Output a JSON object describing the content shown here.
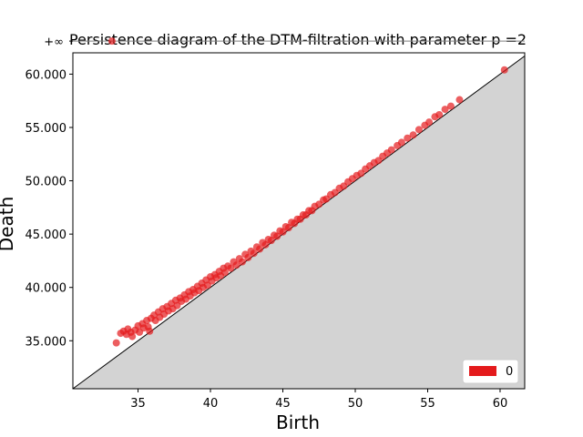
{
  "chart_data": {
    "type": "scatter",
    "title": "Persistence diagram of the DTM-filtration with parameter p =2",
    "xlabel": "Birth",
    "ylabel": "Death",
    "xlim": [
      30.5,
      61.7
    ],
    "ylim": [
      30.5,
      62.0
    ],
    "infinity_label": "+∞",
    "infinity_death_display": 63.1,
    "x_ticks": [
      35,
      40,
      45,
      50,
      55,
      60
    ],
    "x_tick_labels": [
      "35",
      "40",
      "45",
      "50",
      "55",
      "60"
    ],
    "y_ticks": [
      35,
      40,
      45,
      50,
      55,
      60
    ],
    "y_tick_labels": [
      "35.000",
      "40.000",
      "45.000",
      "50.000",
      "55.000",
      "60.000"
    ],
    "grid": false,
    "legend": {
      "position": "bottom-right",
      "entries": [
        {
          "label": "0",
          "color": "#e41a1c"
        }
      ]
    },
    "colors": {
      "points": "#e41a1c",
      "diagonal_fill": "#d3d3d3",
      "infinity_line": "#808080"
    },
    "series": [
      {
        "name": "0",
        "infinite_births": [
          33.2
        ],
        "points": [
          [
            33.5,
            34.8
          ],
          [
            33.8,
            35.7
          ],
          [
            34.0,
            35.9
          ],
          [
            34.2,
            35.6
          ],
          [
            34.3,
            36.1
          ],
          [
            34.5,
            35.8
          ],
          [
            34.6,
            35.4
          ],
          [
            34.8,
            36.0
          ],
          [
            35.0,
            36.4
          ],
          [
            35.1,
            35.8
          ],
          [
            35.3,
            36.6
          ],
          [
            35.4,
            36.2
          ],
          [
            35.6,
            36.9
          ],
          [
            35.7,
            36.3
          ],
          [
            35.8,
            35.9
          ],
          [
            35.9,
            37.1
          ],
          [
            36.1,
            37.4
          ],
          [
            36.2,
            36.9
          ],
          [
            36.4,
            37.7
          ],
          [
            36.5,
            37.2
          ],
          [
            36.7,
            38.0
          ],
          [
            36.8,
            37.5
          ],
          [
            37.0,
            38.2
          ],
          [
            37.1,
            37.8
          ],
          [
            37.3,
            38.5
          ],
          [
            37.4,
            38.0
          ],
          [
            37.6,
            38.8
          ],
          [
            37.7,
            38.3
          ],
          [
            37.9,
            39.0
          ],
          [
            38.0,
            38.7
          ],
          [
            38.2,
            39.3
          ],
          [
            38.3,
            38.9
          ],
          [
            38.5,
            39.6
          ],
          [
            38.6,
            39.2
          ],
          [
            38.8,
            39.8
          ],
          [
            38.9,
            39.5
          ],
          [
            39.1,
            40.1
          ],
          [
            39.2,
            39.7
          ],
          [
            39.4,
            40.4
          ],
          [
            39.5,
            40.0
          ],
          [
            39.7,
            40.7
          ],
          [
            39.8,
            40.2
          ],
          [
            40.0,
            41.0
          ],
          [
            40.1,
            40.6
          ],
          [
            40.3,
            41.2
          ],
          [
            40.4,
            40.9
          ],
          [
            40.6,
            41.5
          ],
          [
            40.7,
            41.1
          ],
          [
            40.9,
            41.8
          ],
          [
            41.0,
            41.4
          ],
          [
            41.2,
            42.0
          ],
          [
            41.4,
            41.8
          ],
          [
            41.6,
            42.4
          ],
          [
            41.8,
            42.1
          ],
          [
            42.0,
            42.7
          ],
          [
            42.2,
            42.4
          ],
          [
            42.4,
            43.1
          ],
          [
            42.6,
            42.8
          ],
          [
            42.8,
            43.4
          ],
          [
            43.0,
            43.2
          ],
          [
            43.2,
            43.8
          ],
          [
            43.4,
            43.6
          ],
          [
            43.6,
            44.2
          ],
          [
            43.8,
            44.0
          ],
          [
            44.0,
            44.5
          ],
          [
            44.2,
            44.4
          ],
          [
            44.4,
            44.9
          ],
          [
            44.6,
            44.8
          ],
          [
            44.8,
            45.3
          ],
          [
            45.0,
            45.2
          ],
          [
            45.2,
            45.7
          ],
          [
            45.4,
            45.6
          ],
          [
            45.6,
            46.1
          ],
          [
            45.8,
            46.0
          ],
          [
            46.0,
            46.4
          ],
          [
            46.2,
            46.4
          ],
          [
            46.4,
            46.8
          ],
          [
            46.6,
            46.8
          ],
          [
            46.8,
            47.2
          ],
          [
            47.0,
            47.2
          ],
          [
            47.2,
            47.6
          ],
          [
            47.5,
            47.8
          ],
          [
            47.8,
            48.2
          ],
          [
            48.0,
            48.3
          ],
          [
            48.3,
            48.7
          ],
          [
            48.6,
            48.9
          ],
          [
            48.9,
            49.3
          ],
          [
            49.2,
            49.5
          ],
          [
            49.5,
            49.9
          ],
          [
            49.8,
            50.2
          ],
          [
            50.1,
            50.5
          ],
          [
            50.4,
            50.7
          ],
          [
            50.7,
            51.1
          ],
          [
            51.0,
            51.4
          ],
          [
            51.3,
            51.7
          ],
          [
            51.6,
            51.9
          ],
          [
            51.9,
            52.3
          ],
          [
            52.2,
            52.6
          ],
          [
            52.5,
            52.9
          ],
          [
            52.9,
            53.3
          ],
          [
            53.2,
            53.6
          ],
          [
            53.6,
            54.0
          ],
          [
            54.0,
            54.3
          ],
          [
            54.4,
            54.8
          ],
          [
            54.8,
            55.2
          ],
          [
            55.1,
            55.5
          ],
          [
            55.5,
            56.0
          ],
          [
            55.8,
            56.2
          ],
          [
            56.2,
            56.7
          ],
          [
            56.6,
            57.0
          ],
          [
            57.2,
            57.6
          ],
          [
            60.3,
            60.4
          ]
        ]
      }
    ]
  }
}
